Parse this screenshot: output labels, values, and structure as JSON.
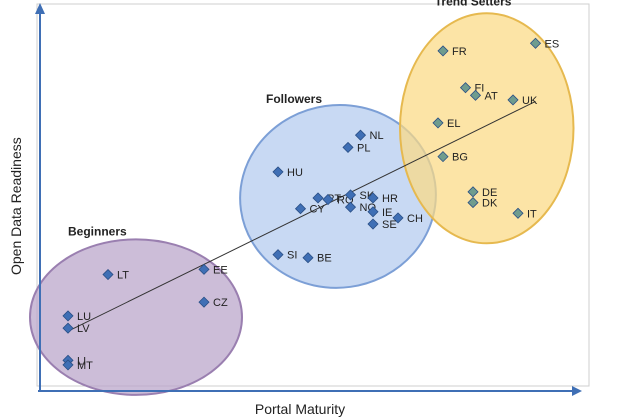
{
  "chart_data": {
    "type": "scatter",
    "title": "",
    "xlabel": "Portal Maturity",
    "ylabel": "Open Data Readiness",
    "grid": false,
    "clusters": [
      {
        "name": "Beginners",
        "fill": "#b9a3c9",
        "stroke": "#9a7fb0"
      },
      {
        "name": "Followers",
        "fill": "#b3cbee",
        "stroke": "#7c9fd6"
      },
      {
        "name": "Trend Setters",
        "fill": "#fbd983",
        "stroke": "#e6b94f"
      }
    ],
    "points": [
      {
        "label": "LT",
        "x": 1.1,
        "y": 3.05,
        "cluster": "Beginners"
      },
      {
        "label": "EE",
        "x": 3.02,
        "y": 3.22,
        "cluster": "Beginners"
      },
      {
        "label": "CZ",
        "x": 3.02,
        "y": 2.15,
        "cluster": "Beginners"
      },
      {
        "label": "LU",
        "x": 0.3,
        "y": 1.7,
        "cluster": "Beginners"
      },
      {
        "label": "LV",
        "x": 0.3,
        "y": 1.3,
        "cluster": "Beginners"
      },
      {
        "label": "LI",
        "x": 0.3,
        "y": 0.25,
        "cluster": "Beginners"
      },
      {
        "label": "MT",
        "x": 0.3,
        "y": 0.1,
        "cluster": "Beginners"
      },
      {
        "label": "NL",
        "x": 6.15,
        "y": 7.6,
        "cluster": "Followers"
      },
      {
        "label": "PL",
        "x": 5.9,
        "y": 7.2,
        "cluster": "Followers"
      },
      {
        "label": "HU",
        "x": 4.5,
        "y": 6.4,
        "cluster": "Followers"
      },
      {
        "label": "PT",
        "x": 5.3,
        "y": 5.55,
        "cluster": "Followers"
      },
      {
        "label": "RO",
        "x": 5.5,
        "y": 5.5,
        "cluster": "Followers"
      },
      {
        "label": "SK",
        "x": 5.95,
        "y": 5.65,
        "cluster": "Followers"
      },
      {
        "label": "CY",
        "x": 4.95,
        "y": 5.2,
        "cluster": "Followers"
      },
      {
        "label": "HR",
        "x": 6.4,
        "y": 5.55,
        "cluster": "Followers"
      },
      {
        "label": "NO",
        "x": 5.95,
        "y": 5.25,
        "cluster": "Followers"
      },
      {
        "label": "IE",
        "x": 6.4,
        "y": 5.1,
        "cluster": "Followers"
      },
      {
        "label": "CH",
        "x": 6.9,
        "y": 4.9,
        "cluster": "Followers"
      },
      {
        "label": "SE",
        "x": 6.4,
        "y": 4.7,
        "cluster": "Followers"
      },
      {
        "label": "SI",
        "x": 4.5,
        "y": 3.7,
        "cluster": "Followers"
      },
      {
        "label": "BE",
        "x": 5.1,
        "y": 3.6,
        "cluster": "Followers"
      },
      {
        "label": "FR",
        "x": 7.8,
        "y": 10.35,
        "cluster": "Trend Setters"
      },
      {
        "label": "ES",
        "x": 9.65,
        "y": 10.6,
        "cluster": "Trend Setters"
      },
      {
        "label": "FI",
        "x": 8.25,
        "y": 9.15,
        "cluster": "Trend Setters"
      },
      {
        "label": "AT",
        "x": 8.45,
        "y": 8.9,
        "cluster": "Trend Setters"
      },
      {
        "label": "UK",
        "x": 9.2,
        "y": 8.75,
        "cluster": "Trend Setters"
      },
      {
        "label": "EL",
        "x": 7.7,
        "y": 8.0,
        "cluster": "Trend Setters"
      },
      {
        "label": "BG",
        "x": 7.8,
        "y": 6.9,
        "cluster": "Trend Setters"
      },
      {
        "label": "DE",
        "x": 8.4,
        "y": 5.75,
        "cluster": "Trend Setters"
      },
      {
        "label": "DK",
        "x": 8.4,
        "y": 5.4,
        "cluster": "Trend Setters"
      },
      {
        "label": "IT",
        "x": 9.3,
        "y": 5.05,
        "cluster": "Trend Setters"
      }
    ],
    "trendline": {
      "from": [
        0.3,
        1.2
      ],
      "to": [
        9.65,
        8.7
      ]
    },
    "xlim": [
      0,
      10
    ],
    "ylim": [
      0,
      11
    ],
    "colors": {
      "axis": "#3f6fb5",
      "marker": "#3f6fb5",
      "trendline": "#333333",
      "text": "#222222"
    }
  }
}
